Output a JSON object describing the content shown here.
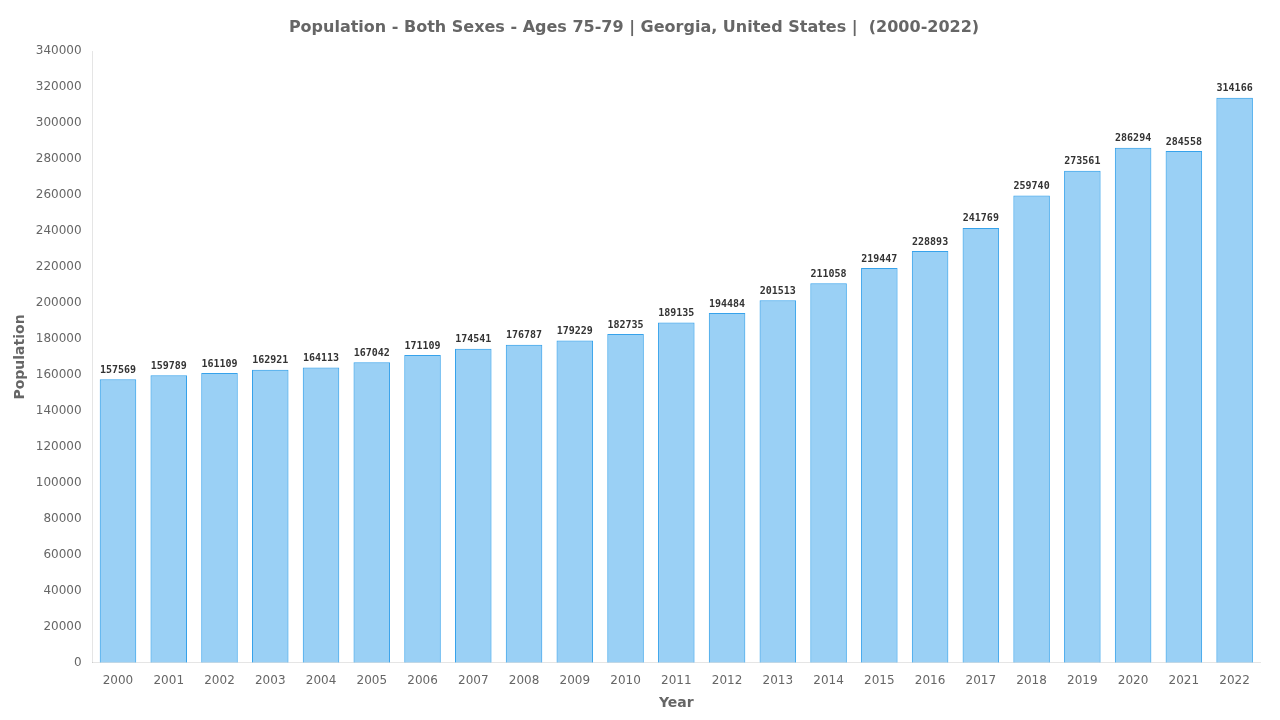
{
  "chart_data": {
    "type": "bar",
    "title": "Population - Both Sexes - Ages 75-79 | Georgia, United States |  (2000-2022)",
    "xlabel": "Year",
    "ylabel": "Population",
    "categories": [
      "2000",
      "2001",
      "2002",
      "2003",
      "2004",
      "2005",
      "2006",
      "2007",
      "2008",
      "2009",
      "2010",
      "2011",
      "2012",
      "2013",
      "2014",
      "2015",
      "2016",
      "2017",
      "2018",
      "2019",
      "2020",
      "2021",
      "2022"
    ],
    "values": [
      157569,
      159789,
      161109,
      162921,
      164113,
      167042,
      171109,
      174541,
      176787,
      179229,
      182735,
      189135,
      194484,
      201513,
      211058,
      219447,
      228893,
      241769,
      259740,
      273561,
      286294,
      284558,
      314166
    ],
    "ylim": [
      0,
      340000
    ],
    "yticks": [
      0,
      20000,
      40000,
      60000,
      80000,
      100000,
      120000,
      140000,
      160000,
      180000,
      200000,
      220000,
      240000,
      260000,
      280000,
      300000,
      320000,
      340000
    ],
    "grid": false,
    "data_labels": true
  }
}
